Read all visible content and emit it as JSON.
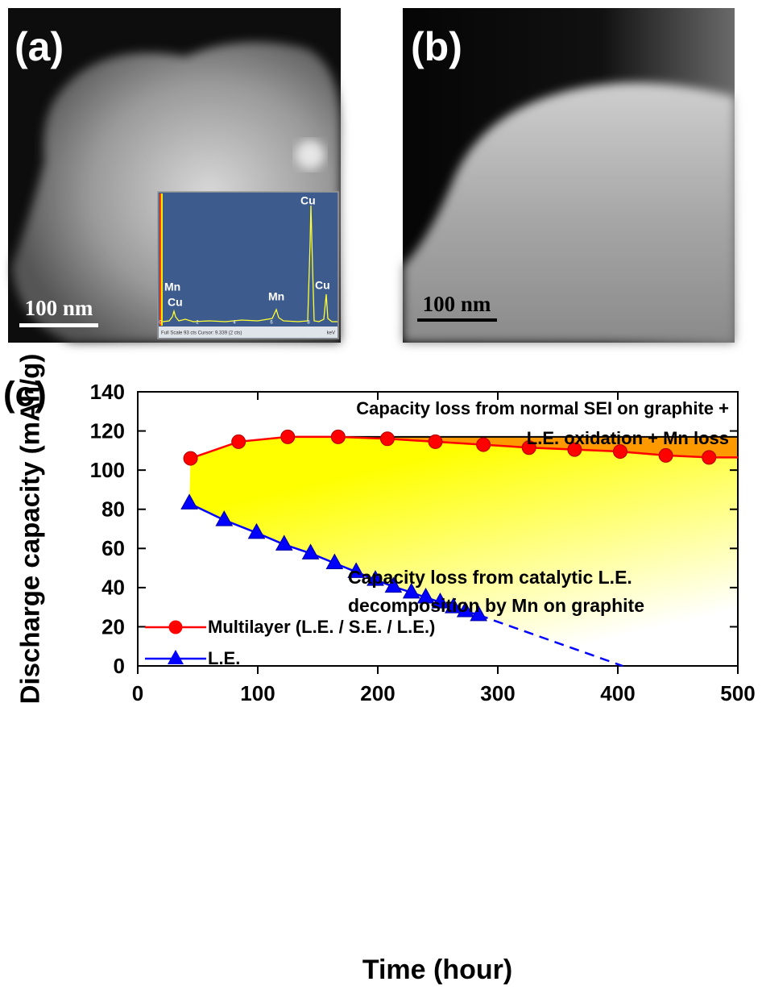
{
  "images": [
    {
      "label": "(a)",
      "scale_bar": "100 nm",
      "inset": {
        "peaks": [
          "Mn",
          "Cu",
          "Mn",
          "Cu",
          "Cu"
        ],
        "axis_ticks": [
          "0",
          "2",
          "4",
          "6",
          "8"
        ],
        "footer": "Full Scale 93 cts Cursor: 9.339 (2 cts)",
        "unit": "keV"
      }
    },
    {
      "label": "(b)",
      "scale_bar": "100 nm"
    }
  ],
  "chart_data": {
    "type": "line",
    "panel_label": "(c)",
    "x_label": "Time (hour)",
    "y_label": "Discharge capacity (mAh/g)",
    "xlim": [
      0,
      500
    ],
    "ylim": [
      0,
      140
    ],
    "xticks": [
      0,
      100,
      200,
      300,
      400,
      500
    ],
    "yticks": [
      0,
      20,
      40,
      60,
      80,
      100,
      120,
      140
    ],
    "legend": "lower left",
    "series": [
      {
        "name": "Multilayer (L.E. / S.E. / L.E.)",
        "color": "#ff0000",
        "marker": "circle",
        "x": [
          44,
          84,
          125,
          167,
          208,
          248,
          288,
          326,
          364,
          402,
          440,
          476
        ],
        "values": [
          106,
          114.5,
          117,
          117,
          116,
          114.5,
          113,
          111.5,
          110.5,
          109.5,
          107.5,
          106.5
        ]
      },
      {
        "name": "L.E.",
        "color": "#0000ff",
        "marker": "triangle",
        "x": [
          43,
          72,
          99,
          122,
          144,
          164,
          182,
          198,
          213,
          228,
          240,
          252,
          263,
          273,
          284
        ],
        "values": [
          83,
          74.5,
          68,
          62,
          57.5,
          52.5,
          48,
          44,
          40.5,
          37.5,
          35,
          32.5,
          30,
          28,
          26
        ],
        "extrapolation": {
          "x": [
            284,
            404
          ],
          "values": [
            26,
            0
          ]
        }
      }
    ],
    "reference_line": {
      "x": [
        125,
        500
      ],
      "y": 117,
      "color": "#000000"
    },
    "fill_colors": {
      "normal_loss": "#ff9900",
      "catalytic_loss": "#ffff00"
    },
    "annotations": [
      {
        "lines": [
          "Capacity loss from normal SEI on graphite +",
          "L.E. oxidation + Mn loss"
        ]
      },
      {
        "lines": [
          "Capacity loss from catalytic L.E.",
          "decomposition by Mn on graphite"
        ]
      }
    ]
  }
}
